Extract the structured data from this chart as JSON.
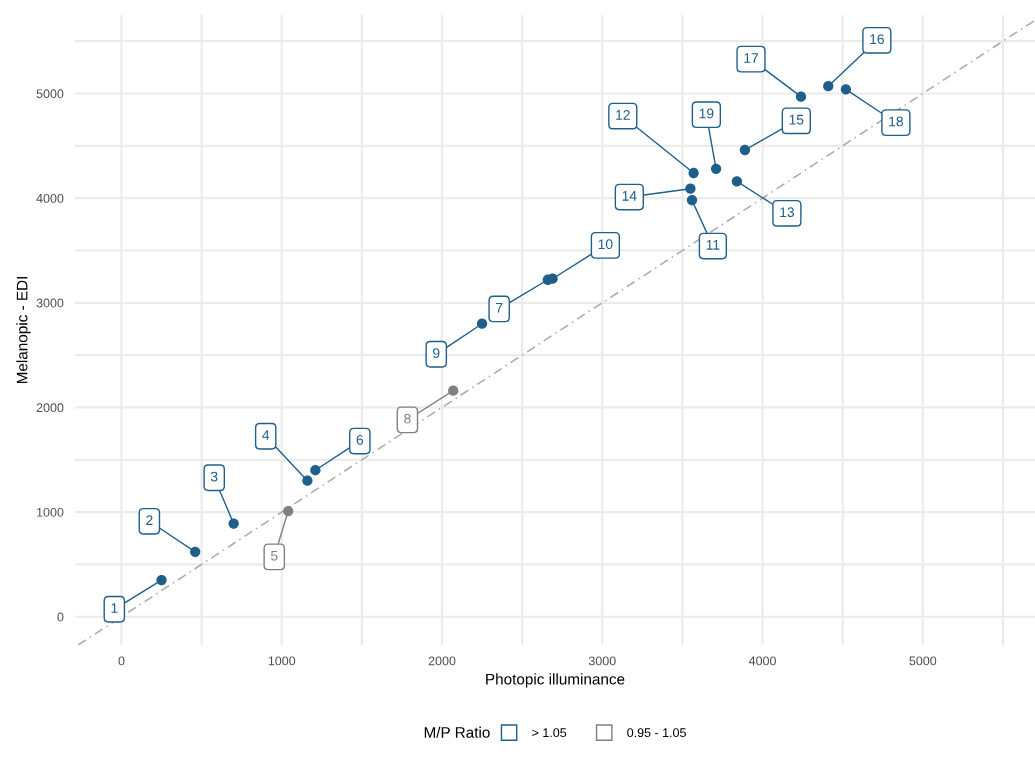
{
  "chart_data": {
    "type": "scatter",
    "xlabel": "Photopic illuminance",
    "ylabel": "Melanopic - EDI",
    "legend_title": "M/P Ratio",
    "legend": "bottom",
    "grid": true,
    "marker": "circle",
    "xlim": [
      -290,
      5700
    ],
    "ylim": [
      -270,
      5750
    ],
    "xticks": [
      0,
      {
        "value": 500,
        "label": null
      },
      1000,
      {
        "value": 1500,
        "label": null
      },
      2000,
      {
        "value": 2500,
        "label": null
      },
      3000,
      {
        "value": 3500,
        "label": null
      },
      4000,
      {
        "value": 4500,
        "label": null
      },
      5000,
      {
        "value": 5500,
        "label": null
      }
    ],
    "yticks": [
      0,
      {
        "value": 500,
        "label": null
      },
      1000,
      {
        "value": 1500,
        "label": null
      },
      2000,
      {
        "value": 2500,
        "label": null
      },
      3000,
      {
        "value": 3500,
        "label": null
      },
      4000,
      {
        "value": 4500,
        "label": null
      },
      5000,
      {
        "value": 5500,
        "label": null
      }
    ],
    "series": [
      {
        "name": "> 1.05",
        "color": "#1f5f8b",
        "x": [
          250,
          460,
          700,
          1160,
          1210,
          2660,
          2250,
          2690,
          3560,
          3570,
          3840,
          3550,
          3890,
          4410,
          4240,
          4520,
          3710
        ],
        "values": [
          350,
          620,
          890,
          1300,
          1400,
          3220,
          2800,
          3230,
          3980,
          4240,
          4160,
          4090,
          4460,
          5070,
          4970,
          5040,
          4280
        ]
      },
      {
        "name": "0.95 - 1.05",
        "color": "#808080",
        "x": [
          1040,
          2070
        ],
        "values": [
          1010,
          2160
        ]
      },
      {
        "type": "line",
        "color": "#aaaaaa",
        "line_style": "dashed",
        "marker": "none",
        "x": [
          -270,
          5700
        ],
        "values": [
          -270,
          5700
        ]
      }
    ],
    "annotations": [
      {
        "text": "1",
        "x": 250,
        "y": 350
      },
      {
        "text": "2",
        "x": 460,
        "y": 620
      },
      {
        "text": "3",
        "x": 700,
        "y": 890
      },
      {
        "text": "4",
        "x": 1160,
        "y": 1300
      },
      {
        "text": "5",
        "x": 1040,
        "y": 1010
      },
      {
        "text": "6",
        "x": 1210,
        "y": 1400
      },
      {
        "text": "7",
        "x": 2660,
        "y": 3220
      },
      {
        "text": "8",
        "x": 2070,
        "y": 2160
      },
      {
        "text": "9",
        "x": 2250,
        "y": 2800
      },
      {
        "text": "10",
        "x": 2690,
        "y": 3230
      },
      {
        "text": "11",
        "x": 3560,
        "y": 3980
      },
      {
        "text": "12",
        "x": 3570,
        "y": 4240
      },
      {
        "text": "13",
        "x": 3840,
        "y": 4160
      },
      {
        "text": "14",
        "x": 3550,
        "y": 4090
      },
      {
        "text": "15",
        "x": 3890,
        "y": 4460
      },
      {
        "text": "16",
        "x": 4410,
        "y": 5070
      },
      {
        "text": "17",
        "x": 4240,
        "y": 4970
      },
      {
        "text": "18",
        "x": 4520,
        "y": 5040
      },
      {
        "text": "19",
        "x": 3710,
        "y": 4280
      }
    ]
  }
}
